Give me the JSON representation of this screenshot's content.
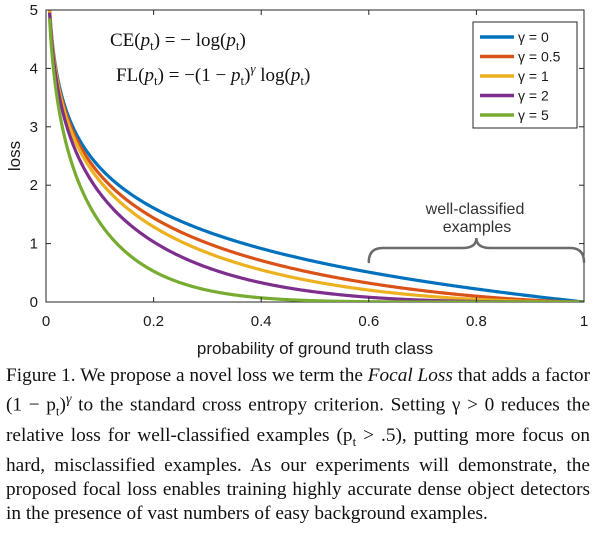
{
  "chart_data": {
    "type": "line",
    "xlabel": "probability of ground truth class",
    "ylabel": "loss",
    "xlim": [
      0,
      1
    ],
    "ylim": [
      0,
      5
    ],
    "xticks": [
      "0",
      "0.2",
      "0.4",
      "0.6",
      "0.8",
      "1"
    ],
    "yticks": [
      "0",
      "1",
      "2",
      "3",
      "4",
      "5"
    ],
    "grid": false,
    "legend_position": "top-right",
    "equations": {
      "ce": "CE(pt) = − log(pt)",
      "fl": "FL(pt) = −(1 − pt)^γ log(pt)"
    },
    "annotation": {
      "line1": "well-classified",
      "line2": "examples",
      "range": [
        0.6,
        1.0
      ]
    },
    "x": [
      0.007,
      0.01,
      0.015,
      0.02,
      0.03,
      0.04,
      0.05,
      0.06,
      0.08,
      0.1,
      0.12,
      0.15,
      0.2,
      0.25,
      0.3,
      0.35,
      0.4,
      0.45,
      0.5,
      0.55,
      0.6,
      0.65,
      0.7,
      0.75,
      0.8,
      0.85,
      0.9,
      0.95,
      1.0
    ],
    "series": [
      {
        "name": "γ = 0",
        "gamma": 0,
        "color": "#0072BD",
        "values": [
          4.96,
          4.61,
          4.2,
          3.91,
          3.51,
          3.22,
          3.0,
          2.81,
          2.53,
          2.3,
          2.12,
          1.9,
          1.61,
          1.39,
          1.2,
          1.05,
          0.92,
          0.8,
          0.69,
          0.6,
          0.51,
          0.43,
          0.36,
          0.29,
          0.22,
          0.16,
          0.11,
          0.05,
          0.0
        ]
      },
      {
        "name": "γ = 0.5",
        "gamma": 0.5,
        "color": "#D95319",
        "values": [
          4.94,
          4.58,
          4.17,
          3.87,
          3.46,
          3.15,
          2.92,
          2.73,
          2.42,
          2.18,
          1.99,
          1.75,
          1.44,
          1.2,
          1.0,
          0.85,
          0.71,
          0.59,
          0.49,
          0.4,
          0.32,
          0.25,
          0.2,
          0.14,
          0.1,
          0.06,
          0.03,
          0.01,
          0.0
        ]
      },
      {
        "name": "γ = 1",
        "gamma": 1,
        "color": "#EDB120",
        "values": [
          4.93,
          4.56,
          4.14,
          3.83,
          3.4,
          3.09,
          2.85,
          2.64,
          2.32,
          2.07,
          1.87,
          1.61,
          1.29,
          1.04,
          0.84,
          0.68,
          0.55,
          0.44,
          0.35,
          0.27,
          0.2,
          0.15,
          0.11,
          0.07,
          0.04,
          0.02,
          0.01,
          0.003,
          0.0
        ]
      },
      {
        "name": "γ = 2",
        "gamma": 2,
        "color": "#7E2F8E",
        "values": [
          4.89,
          4.52,
          4.07,
          3.76,
          3.3,
          2.97,
          2.71,
          2.49,
          2.14,
          1.87,
          1.64,
          1.37,
          1.03,
          0.78,
          0.59,
          0.44,
          0.33,
          0.24,
          0.17,
          0.12,
          0.08,
          0.05,
          0.03,
          0.02,
          0.01,
          0.004,
          0.001,
          0.0,
          0.0
        ]
      },
      {
        "name": "γ = 5",
        "gamma": 5,
        "color": "#77AC30",
        "values": [
          4.79,
          4.38,
          3.89,
          3.54,
          3.01,
          2.63,
          2.32,
          2.07,
          1.67,
          1.36,
          1.12,
          0.84,
          0.53,
          0.33,
          0.2,
          0.12,
          0.07,
          0.04,
          0.02,
          0.01,
          0.005,
          0.002,
          0.001,
          0.0,
          0.0,
          0.0,
          0.0,
          0.0,
          0.0
        ]
      }
    ]
  },
  "caption": {
    "t1": "Figure 1. We propose a novel loss we term the ",
    "t2": "Focal Loss",
    "t3": " that adds a factor (1 − p",
    "t4": "t",
    "t5": ")",
    "t6": "γ",
    "t7": " to the standard cross entropy criterion. Setting γ > 0 reduces the relative loss for well-classified examples (p",
    "t8": "t",
    "t9": " > .5), putting more focus on hard, misclassified examples. As our experiments will demonstrate, the proposed focal loss enables training highly accurate dense object detectors in the presence of vast numbers of easy background examples."
  }
}
